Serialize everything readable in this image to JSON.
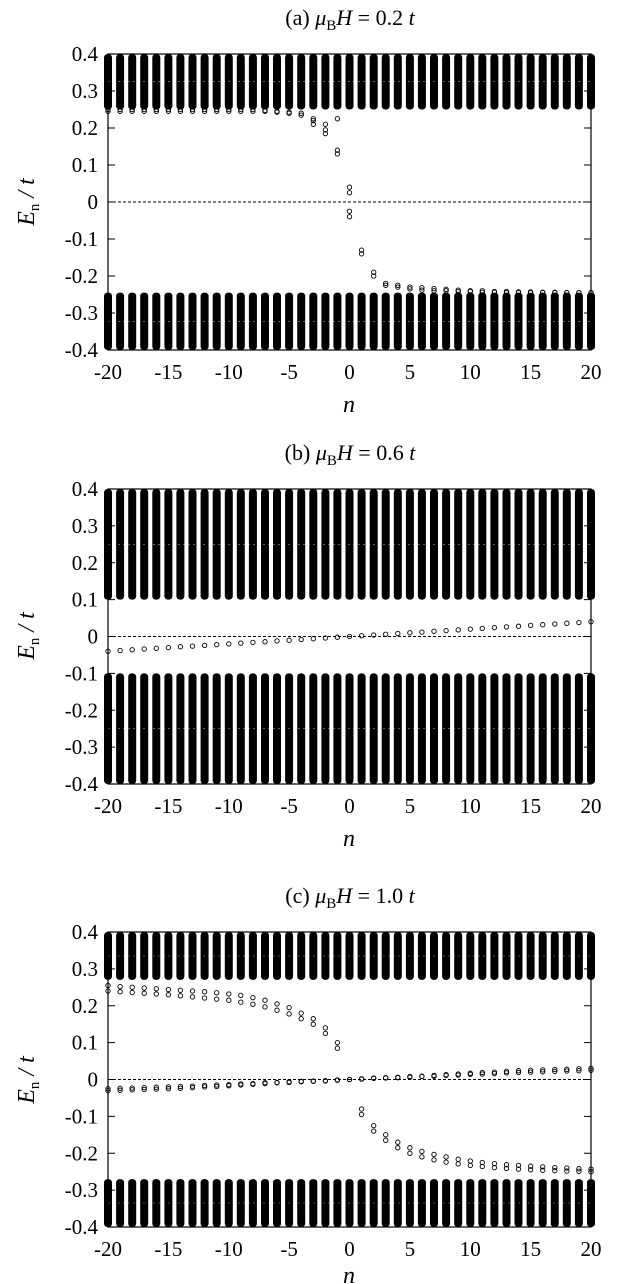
{
  "chart_data": [
    {
      "type": "scatter",
      "title": {
        "prefix": "(a) ",
        "symbol": "μ",
        "sub": "B",
        "var": "H",
        "eq": " = 0.2 ",
        "unit": "t"
      },
      "xlabel": "n",
      "ylabel": {
        "main": "E",
        "sub": "n",
        "rest": " / t"
      },
      "xlim": [
        -20,
        20
      ],
      "ylim": [
        -0.4,
        0.4
      ],
      "x_ticks": [
        "-20",
        "-15",
        "-10",
        "-5",
        "0",
        "5",
        "10",
        "15",
        "20"
      ],
      "y_ticks": [
        "0.4",
        "0.3",
        "0.2",
        "0.1",
        "0",
        "-0.1",
        "-0.2",
        "-0.3",
        "-0.4"
      ],
      "zero_line": true,
      "bands": [
        {
          "min": 0.25,
          "max": 0.4
        },
        {
          "min": -0.4,
          "max": -0.245
        }
      ],
      "x": [
        -20,
        -19,
        -18,
        -17,
        -16,
        -15,
        -14,
        -13,
        -12,
        -11,
        -10,
        -9,
        -8,
        -7,
        -6,
        -5,
        -4,
        -3,
        -2,
        -1,
        0,
        1,
        2,
        3,
        4,
        5,
        6,
        7,
        8,
        9,
        10,
        11,
        12,
        13,
        14,
        15,
        16,
        17,
        18,
        19,
        20
      ],
      "series": [
        {
          "values": [
            0.245,
            0.245,
            0.245,
            0.245,
            0.245,
            0.245,
            0.245,
            0.245,
            0.245,
            0.245,
            0.245,
            0.245,
            0.245,
            0.245,
            0.243,
            0.24,
            0.235,
            0.22,
            0.195,
            0.13,
            0.04,
            -0.13,
            -0.19,
            -0.22,
            -0.225,
            -0.23,
            -0.232,
            -0.234,
            -0.236,
            -0.238,
            -0.24,
            -0.24,
            -0.242,
            -0.242,
            -0.243,
            -0.243,
            -0.244,
            -0.244,
            -0.245,
            -0.245,
            -0.245
          ]
        },
        {
          "values": [
            0.25,
            0.25,
            0.25,
            0.25,
            0.25,
            0.25,
            0.25,
            0.25,
            0.25,
            0.25,
            0.25,
            0.25,
            0.25,
            0.248,
            0.245,
            0.243,
            0.24,
            0.21,
            0.185,
            0.14,
            0.025,
            -0.14,
            -0.2,
            -0.225,
            -0.23,
            -0.235,
            -0.238,
            -0.24,
            -0.24,
            -0.242,
            -0.242,
            -0.244,
            -0.244,
            -0.245,
            -0.245,
            -0.245,
            -0.245,
            -0.245,
            -0.245,
            -0.245,
            -0.245
          ]
        },
        {
          "values": [
            null,
            null,
            null,
            null,
            null,
            null,
            null,
            null,
            null,
            null,
            null,
            null,
            null,
            null,
            null,
            null,
            null,
            0.225,
            0.21,
            0.225,
            -0.025,
            null,
            null,
            null,
            null,
            null,
            null,
            null,
            null,
            null,
            null,
            null,
            null,
            null,
            null,
            null,
            null,
            null,
            null,
            null,
            null
          ]
        },
        {
          "values": [
            null,
            null,
            null,
            null,
            null,
            null,
            null,
            null,
            null,
            null,
            null,
            null,
            null,
            null,
            null,
            null,
            null,
            null,
            null,
            null,
            -0.04,
            null,
            null,
            null,
            null,
            null,
            null,
            null,
            null,
            null,
            null,
            null,
            null,
            null,
            null,
            null,
            null,
            null,
            null,
            null,
            null
          ]
        }
      ]
    },
    {
      "type": "scatter",
      "title": {
        "prefix": "(b) ",
        "symbol": "μ",
        "sub": "B",
        "var": "H",
        "eq": " = 0.6 ",
        "unit": "t"
      },
      "xlabel": "n",
      "ylabel": {
        "main": "E",
        "sub": "n",
        "rest": " / t"
      },
      "xlim": [
        -20,
        20
      ],
      "ylim": [
        -0.4,
        0.4
      ],
      "x_ticks": [
        "-20",
        "-15",
        "-10",
        "-5",
        "0",
        "5",
        "10",
        "15",
        "20"
      ],
      "y_ticks": [
        "0.4",
        "0.3",
        "0.2",
        "0.1",
        "0",
        "-0.1",
        "-0.2",
        "-0.3",
        "-0.4"
      ],
      "zero_line": true,
      "bands": [
        {
          "min": 0.1,
          "max": 0.4
        },
        {
          "min": -0.4,
          "max": -0.1
        }
      ],
      "x": [
        -20,
        -19,
        -18,
        -17,
        -16,
        -15,
        -14,
        -13,
        -12,
        -11,
        -10,
        -9,
        -8,
        -7,
        -6,
        -5,
        -4,
        -3,
        -2,
        -1,
        0,
        1,
        2,
        3,
        4,
        5,
        6,
        7,
        8,
        9,
        10,
        11,
        12,
        13,
        14,
        15,
        16,
        17,
        18,
        19,
        20
      ],
      "series": [
        {
          "values": [
            -0.04,
            -0.038,
            -0.036,
            -0.034,
            -0.032,
            -0.03,
            -0.028,
            -0.026,
            -0.024,
            -0.022,
            -0.02,
            -0.018,
            -0.016,
            -0.014,
            -0.012,
            -0.01,
            -0.008,
            -0.006,
            -0.004,
            -0.002,
            0,
            0.002,
            0.004,
            0.006,
            0.008,
            0.01,
            0.012,
            0.014,
            0.016,
            0.018,
            0.02,
            0.022,
            0.024,
            0.026,
            0.028,
            0.03,
            0.032,
            0.034,
            0.036,
            0.038,
            0.04
          ]
        }
      ]
    },
    {
      "type": "scatter",
      "title": {
        "prefix": "(c) ",
        "symbol": "μ",
        "sub": "B",
        "var": "H",
        "eq": " = 1.0 ",
        "unit": "t"
      },
      "xlabel": "n",
      "ylabel": {
        "main": "E",
        "sub": "n",
        "rest": " / t"
      },
      "xlim": [
        -20,
        20
      ],
      "ylim": [
        -0.4,
        0.4
      ],
      "x_ticks": [
        "-20",
        "-15",
        "-10",
        "-5",
        "0",
        "5",
        "10",
        "15",
        "20"
      ],
      "y_ticks": [
        "0.4",
        "0.3",
        "0.2",
        "0.1",
        "0",
        "-0.1",
        "-0.2",
        "-0.3",
        "-0.4"
      ],
      "zero_line": true,
      "bands": [
        {
          "min": 0.27,
          "max": 0.4
        },
        {
          "min": -0.4,
          "max": -0.27
        }
      ],
      "x": [
        -20,
        -19,
        -18,
        -17,
        -16,
        -15,
        -14,
        -13,
        -12,
        -11,
        -10,
        -9,
        -8,
        -7,
        -6,
        -5,
        -4,
        -3,
        -2,
        -1,
        0,
        1,
        2,
        3,
        4,
        5,
        6,
        7,
        8,
        9,
        10,
        11,
        12,
        13,
        14,
        15,
        16,
        17,
        18,
        19,
        20
      ],
      "series": [
        {
          "values": [
            0.255,
            0.252,
            0.25,
            0.248,
            0.246,
            0.244,
            0.242,
            0.24,
            0.238,
            0.235,
            0.232,
            0.228,
            0.222,
            0.215,
            0.205,
            0.195,
            0.18,
            0.165,
            0.14,
            0.1,
            null,
            -0.08,
            -0.125,
            -0.15,
            -0.17,
            -0.185,
            -0.195,
            -0.203,
            -0.21,
            -0.216,
            -0.221,
            -0.225,
            -0.228,
            -0.231,
            -0.233,
            -0.235,
            -0.237,
            -0.239,
            -0.24,
            -0.242,
            -0.243
          ]
        },
        {
          "values": [
            0.24,
            0.238,
            0.236,
            0.234,
            0.232,
            0.23,
            0.227,
            0.224,
            0.221,
            0.218,
            0.215,
            0.21,
            0.204,
            0.197,
            0.188,
            0.178,
            0.165,
            0.15,
            0.125,
            0.085,
            null,
            -0.095,
            -0.14,
            -0.165,
            -0.185,
            -0.2,
            -0.21,
            -0.218,
            -0.224,
            -0.229,
            -0.233,
            -0.236,
            -0.239,
            -0.241,
            -0.243,
            -0.245,
            -0.246,
            -0.247,
            -0.248,
            -0.249,
            -0.25
          ]
        },
        {
          "values": [
            -0.025,
            -0.024,
            -0.023,
            -0.022,
            -0.021,
            -0.02,
            -0.019,
            -0.018,
            -0.016,
            -0.015,
            -0.014,
            -0.012,
            -0.011,
            -0.009,
            -0.008,
            -0.006,
            -0.005,
            -0.004,
            -0.003,
            -0.001,
            0,
            0.001,
            0.003,
            0.004,
            0.005,
            0.006,
            0.008,
            0.009,
            0.011,
            0.012,
            0.014,
            0.015,
            0.016,
            0.018,
            0.019,
            0.02,
            0.021,
            0.022,
            0.023,
            0.024,
            0.025
          ]
        },
        {
          "values": [
            -0.03,
            -0.029,
            -0.028,
            -0.027,
            -0.026,
            -0.025,
            -0.024,
            -0.022,
            -0.02,
            -0.019,
            -0.017,
            -0.015,
            -0.013,
            -0.011,
            -0.009,
            -0.008,
            -0.006,
            -0.005,
            -0.004,
            -0.002,
            0,
            0.002,
            0.004,
            0.005,
            0.006,
            0.008,
            0.009,
            0.011,
            0.013,
            0.015,
            0.017,
            0.019,
            0.02,
            0.022,
            0.024,
            0.025,
            0.026,
            0.027,
            0.028,
            0.029,
            0.03
          ]
        }
      ]
    }
  ]
}
